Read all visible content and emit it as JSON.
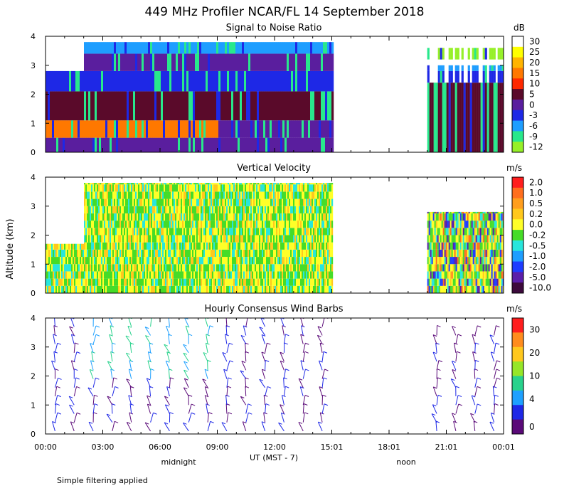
{
  "figure": {
    "title": "449 MHz Profiler NCAR/FL 14 September 2018",
    "x_axis_label": "UT  (MST - 7)",
    "y_axis_label": "Altitude (km)",
    "x_tick_labels": [
      "00:00",
      "03:00",
      "06:00",
      "09:00",
      "12:00",
      "15:01",
      "18:01",
      "21:01",
      "00:01"
    ],
    "local_time_labels": [
      "midnight",
      "noon"
    ],
    "footnote": "Simple filtering applied"
  },
  "chart_data": [
    {
      "type": "heatmap",
      "title": "Signal to Noise Ratio",
      "unit": "dB",
      "xlim_hours": [
        0,
        24
      ],
      "ylim_km": [
        0,
        4
      ],
      "y_ticks": [
        "0",
        "1",
        "2",
        "3",
        "4"
      ],
      "colorbar": {
        "labels": [
          "30",
          "25",
          "20",
          "15",
          "10",
          "5",
          "0",
          "-3",
          "-6",
          "-9",
          "-12"
        ],
        "colors": [
          "#ffffff",
          "#ffff00",
          "#ffb400",
          "#ff7800",
          "#ff2800",
          "#5a0a2a",
          "#5a1e9e",
          "#1e28e6",
          "#1e9eff",
          "#28e88c",
          "#96f028"
        ]
      },
      "data_periods_hours": [
        [
          0,
          15.0
        ],
        [
          20.0,
          24.0
        ]
      ]
    },
    {
      "type": "heatmap",
      "title": "Vertical Velocity",
      "unit": "m/s",
      "xlim_hours": [
        0,
        24
      ],
      "ylim_km": [
        0,
        4
      ],
      "y_ticks": [
        "0",
        "1",
        "2",
        "3",
        "4"
      ],
      "colorbar": {
        "labels": [
          "2.0",
          "1.0",
          "0.5",
          "0.2",
          "0.0",
          "-0.2",
          "-0.5",
          "-1.0",
          "-2.0",
          "-5.0",
          "-10.0"
        ],
        "colors": [
          "#ff1e1e",
          "#ff6e1e",
          "#ff9e1e",
          "#ffc81e",
          "#ffff28",
          "#46dc28",
          "#28e6dc",
          "#1e9eff",
          "#1e3cff",
          "#5a1eaa",
          "#3c0a3c"
        ]
      },
      "data_periods_hours": [
        [
          0,
          15.0
        ],
        [
          20.0,
          24.0
        ]
      ]
    },
    {
      "type": "scatter",
      "title": "Hourly Consensus Wind Barbs",
      "unit": "m/s",
      "xlim_hours": [
        0,
        24
      ],
      "ylim_km": [
        0,
        4
      ],
      "y_ticks": [
        "0",
        "1",
        "2",
        "3",
        "4"
      ],
      "colorbar": {
        "labels": [
          "30",
          "20",
          "10",
          "4",
          "0"
        ],
        "colors": [
          "#ff1e1e",
          "#ff8c1e",
          "#ffc81e",
          "#96e628",
          "#28d28c",
          "#1ea0ff",
          "#1e28e6",
          "#5a0a78"
        ]
      },
      "data_periods_hours": [
        [
          0,
          15.0
        ],
        [
          20.0,
          24.0
        ]
      ]
    }
  ]
}
